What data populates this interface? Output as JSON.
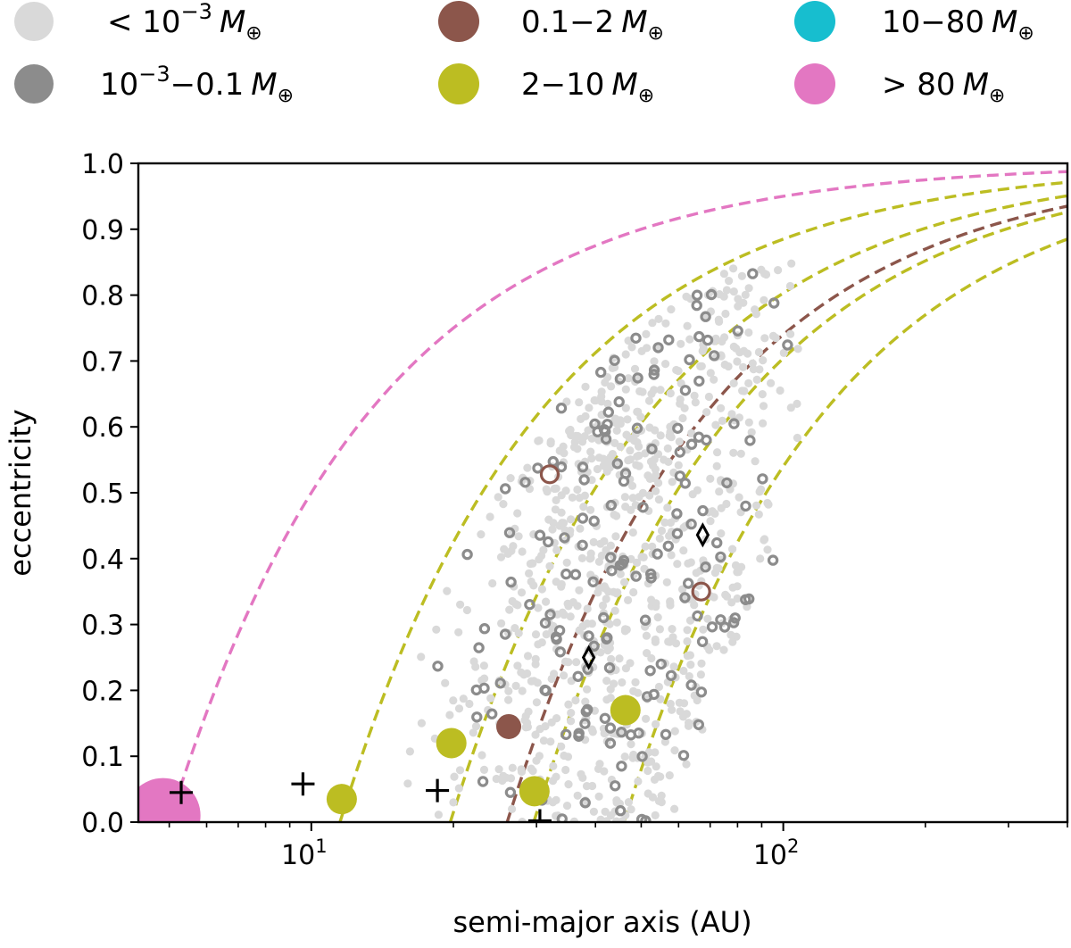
{
  "chart_data": {
    "type": "scatter",
    "title": "",
    "xlabel": "semi-major axis (AU)",
    "ylabel": "eccentricity",
    "xscale": "log",
    "xlim": [
      4.3,
      400
    ],
    "ylim": [
      0.0,
      1.0
    ],
    "grid": false,
    "legend_position": "top (above plot, 3 columns)",
    "xtick_labels": [
      {
        "value": 10,
        "base": "10",
        "exp": "1"
      },
      {
        "value": 100,
        "base": "10",
        "exp": "2"
      }
    ],
    "ytick_labels": [
      "0.0",
      "0.1",
      "0.2",
      "0.3",
      "0.4",
      "0.5",
      "0.6",
      "0.7",
      "0.8",
      "0.9",
      "1.0"
    ],
    "colors": {
      "tiny": "#d9d9d9",
      "small": "#8c8c8c",
      "medium": "#8c564b",
      "super_earth": "#bcbd22",
      "neptune": "#17becf",
      "giant": "#e377c2",
      "marker": "#000000"
    },
    "legend": [
      {
        "key": "tiny",
        "prefix": "<",
        "base": "10",
        "exp": "−3",
        "suffix": "",
        "unit": "M",
        "sub": "⊕"
      },
      {
        "key": "medium",
        "prefix": "",
        "base": "0.1−2",
        "exp": "",
        "suffix": "",
        "unit": "M",
        "sub": "⊕"
      },
      {
        "key": "neptune",
        "prefix": "",
        "base": "10−80",
        "exp": "",
        "suffix": "",
        "unit": "M",
        "sub": "⊕"
      },
      {
        "key": "small",
        "prefix": "",
        "base": "10",
        "exp": "−3",
        "suffix": "−0.1",
        "unit": "M",
        "sub": "⊕"
      },
      {
        "key": "super_earth",
        "prefix": "",
        "base": "2−10",
        "exp": "",
        "suffix": "",
        "unit": "M",
        "sub": "⊕"
      },
      {
        "key": "giant",
        "prefix": ">",
        "base": "80",
        "exp": "",
        "suffix": "",
        "unit": "M",
        "sub": "⊕"
      }
    ],
    "curves": [
      {
        "name": "giant-periastron",
        "color_key": "giant",
        "q": 5.0
      },
      {
        "name": "super-earth-1-periastron",
        "color_key": "super_earth",
        "q": 11.5
      },
      {
        "name": "super-earth-2-periastron",
        "color_key": "super_earth",
        "q": 19.7
      },
      {
        "name": "medium-periastron",
        "color_key": "medium",
        "q": 26.0
      },
      {
        "name": "super-earth-3-periastron",
        "color_key": "super_earth",
        "q": 29.6
      },
      {
        "name": "super-earth-4-periastron",
        "color_key": "super_earth",
        "q": 46.0
      }
    ],
    "planets": [
      {
        "a": 4.85,
        "e": 0.01,
        "color_key": "giant",
        "size": "xl"
      },
      {
        "a": 11.6,
        "e": 0.035,
        "color_key": "super_earth",
        "size": "l"
      },
      {
        "a": 19.8,
        "e": 0.12,
        "color_key": "super_earth",
        "size": "l"
      },
      {
        "a": 29.7,
        "e": 0.047,
        "color_key": "super_earth",
        "size": "l"
      },
      {
        "a": 46.3,
        "e": 0.17,
        "color_key": "super_earth",
        "size": "l"
      },
      {
        "a": 26.2,
        "e": 0.145,
        "color_key": "medium",
        "size": "m"
      }
    ],
    "open_rings": [
      {
        "a": 32.0,
        "e": 0.528,
        "color_key": "medium"
      },
      {
        "a": 67.0,
        "e": 0.35,
        "color_key": "medium"
      }
    ],
    "crosses": [
      {
        "a": 5.3,
        "e": 0.045
      },
      {
        "a": 9.6,
        "e": 0.058
      },
      {
        "a": 18.5,
        "e": 0.048
      },
      {
        "a": 30.5,
        "e": 0.002
      }
    ],
    "diamonds": [
      {
        "a": 38.7,
        "e": 0.25
      },
      {
        "a": 67.5,
        "e": 0.436
      }
    ],
    "small_bodies": {
      "description": "cloud of ~800 tiny (<1e-3 Earth mass) bodies and ~160 small (1e-3 to 0.1 Earth mass) bodies",
      "a_range": [
        12,
        110
      ],
      "e_range": [
        0.0,
        0.93
      ],
      "seed": 7,
      "tiny_count": 800,
      "small_count": 160
    }
  }
}
